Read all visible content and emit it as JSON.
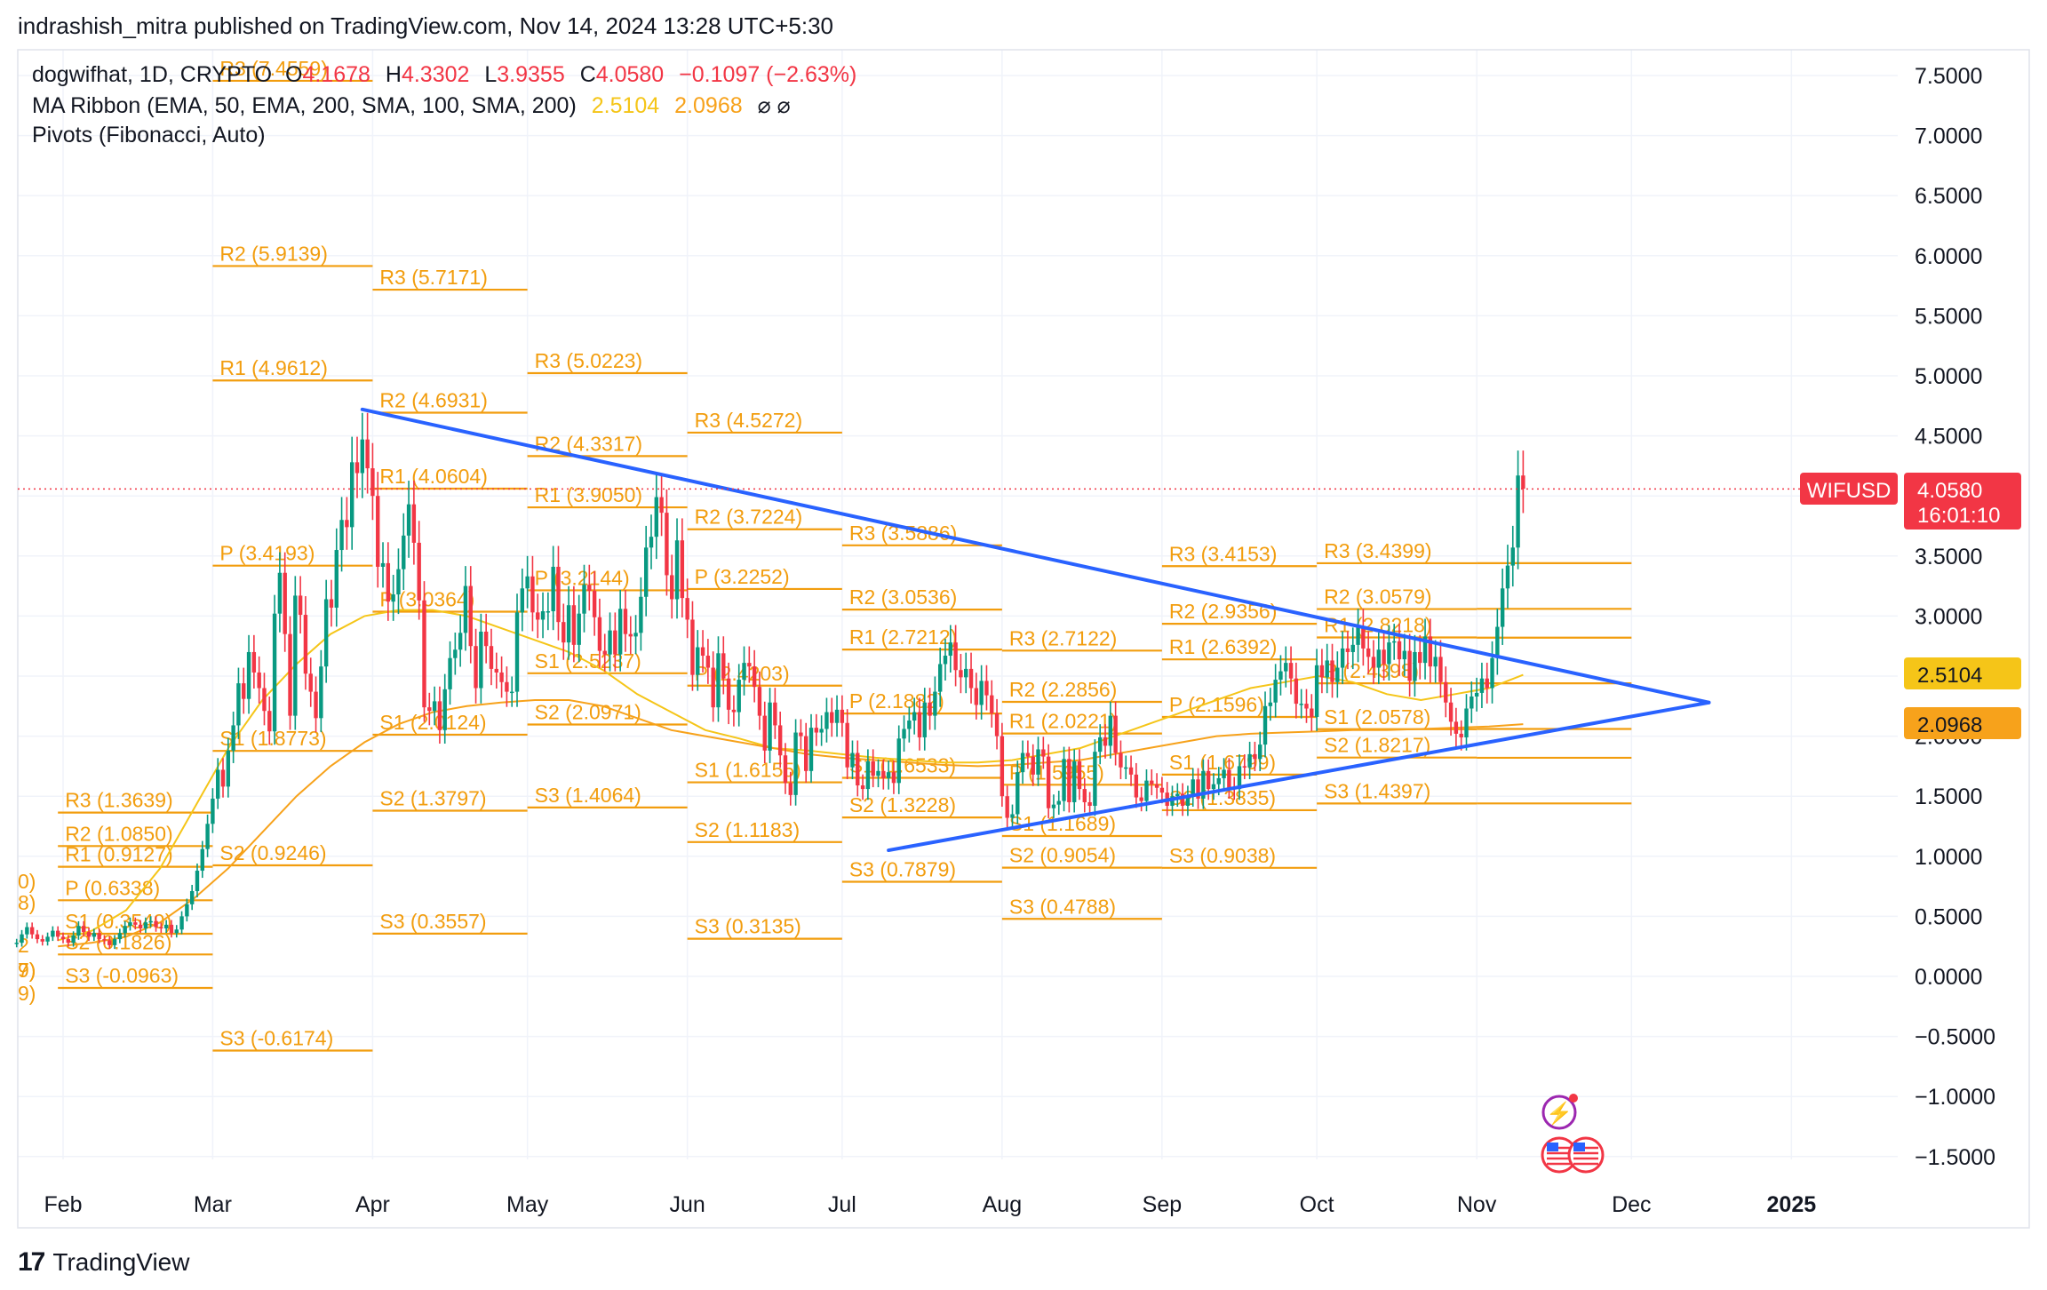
{
  "header": {
    "published": "indrashish_mitra published on TradingView.com, Nov 14, 2024 13:28 UTC+5:30"
  },
  "legend": {
    "symbol": "dogwifhat, 1D, CRYPTO",
    "o_label": "O",
    "o": "4.1678",
    "h_label": "H",
    "h": "4.3302",
    "l_label": "L",
    "l": "3.9355",
    "c_label": "C",
    "c": "4.0580",
    "change": "−0.1097 (−2.63%)",
    "ma_ribbon": "MA Ribbon (EMA, 50, EMA, 200, SMA, 100, SMA, 200)",
    "ma_v1": "2.5104",
    "ma_v2": "2.0968",
    "ma_na": "⌀ ⌀",
    "pivots": "Pivots (Fibonacci, Auto)"
  },
  "footer": {
    "brand": "TradingView"
  },
  "colors": {
    "up": "#089981",
    "down": "#f23645",
    "pivot": "#f29d0e",
    "trend": "#2962ff",
    "ma1": "#f5c518",
    "ma2": "#f7a21b",
    "grid": "#f0f3fa"
  },
  "icons": [
    "lightning-icon",
    "us-flag-icon",
    "us-flag-icon"
  ],
  "chart_data": {
    "type": "candlestick",
    "symbol": "WIFUSD",
    "last_price": "4.0580",
    "countdown": "16:01:10",
    "ma_labels": [
      "2.5104",
      "2.0968"
    ],
    "ylim": [
      -1.7,
      7.7
    ],
    "y_ticks": [
      "7.5000",
      "7.0000",
      "6.5000",
      "6.0000",
      "5.5000",
      "5.0000",
      "4.5000",
      "4.0000",
      "3.5000",
      "3.0000",
      "2.5000",
      "2.0000",
      "1.5000",
      "1.0000",
      "0.5000",
      "0.0000",
      "−0.5000",
      "−1.0000",
      "−1.5000"
    ],
    "y_tick_values": [
      7.5,
      7.0,
      6.5,
      6.0,
      5.5,
      5.0,
      4.5,
      4.0,
      3.5,
      3.0,
      2.5,
      2.0,
      1.5,
      1.0,
      0.5,
      0.0,
      -0.5,
      -1.0,
      -1.5
    ],
    "x_ticks": [
      "Feb",
      "Mar",
      "Apr",
      "May",
      "Jun",
      "Jul",
      "Aug",
      "Sep",
      "Oct",
      "Nov",
      "Dec",
      "2025"
    ],
    "x_tick_days": [
      31,
      60,
      91,
      121,
      152,
      182,
      213,
      244,
      274,
      305,
      335,
      366
    ],
    "start_day": 22,
    "closes": [
      0.28,
      0.35,
      0.41,
      0.35,
      0.31,
      0.29,
      0.33,
      0.38,
      0.33,
      0.31,
      0.28,
      0.34,
      0.42,
      0.37,
      0.33,
      0.36,
      0.31,
      0.3,
      0.26,
      0.31,
      0.36,
      0.42,
      0.45,
      0.43,
      0.4,
      0.45,
      0.46,
      0.41,
      0.4,
      0.43,
      0.36,
      0.39,
      0.5,
      0.6,
      0.71,
      0.88,
      1.06,
      1.27,
      1.48,
      1.72,
      1.58,
      1.88,
      2.09,
      2.44,
      2.31,
      2.7,
      2.53,
      2.4,
      2.21,
      2.04,
      3.02,
      3.36,
      2.85,
      2.17,
      3.17,
      3.01,
      2.52,
      2.37,
      2.15,
      2.58,
      3.14,
      3.07,
      3.55,
      3.8,
      3.74,
      4.28,
      4.19,
      4.47,
      4.23,
      4.0,
      3.41,
      3.44,
      3.12,
      3.18,
      3.39,
      3.67,
      3.93,
      3.61,
      3.13,
      2.24,
      2.21,
      2.29,
      2.05,
      2.39,
      2.65,
      2.72,
      2.86,
      3.25,
      2.75,
      2.4,
      2.87,
      2.75,
      2.56,
      2.53,
      2.45,
      2.37,
      2.37,
      3.03,
      3.23,
      3.33,
      3.03,
      2.97,
      3.04,
      3.04,
      3.41,
      2.95,
      2.78,
      3.09,
      2.76,
      3.02,
      3.26,
      3.21,
      2.99,
      2.71,
      2.68,
      2.88,
      2.68,
      3.06,
      2.85,
      2.83,
      2.86,
      3.16,
      3.57,
      3.66,
      3.99,
      3.86,
      3.34,
      3.14,
      3.63,
      3.15,
      2.97,
      2.51,
      2.74,
      2.67,
      2.57,
      2.24,
      2.69,
      2.48,
      2.22,
      2.2,
      2.47,
      2.61,
      2.58,
      2.41,
      2.17,
      1.88,
      2.28,
      2.09,
      1.84,
      1.61,
      1.51,
      2.03,
      2.0,
      1.71,
      2.07,
      2.03,
      2.06,
      2.2,
      2.11,
      2.22,
      2.11,
      1.74,
      1.86,
      1.59,
      1.56,
      1.79,
      1.67,
      1.71,
      1.65,
      1.7,
      1.61,
      1.98,
      2.06,
      2.13,
      2.2,
      1.99,
      2.28,
      2.17,
      2.37,
      2.6,
      2.67,
      2.78,
      2.55,
      2.49,
      2.56,
      2.4,
      2.26,
      2.46,
      2.34,
      2.19,
      2.0,
      1.5,
      1.32,
      1.35,
      1.7,
      1.86,
      1.83,
      1.68,
      1.89,
      1.83,
      1.4,
      1.43,
      1.46,
      1.81,
      1.45,
      1.79,
      1.56,
      1.45,
      1.42,
      1.87,
      1.99,
      1.92,
      2.17,
      1.86,
      1.74,
      1.74,
      1.68,
      1.49,
      1.46,
      1.63,
      1.6,
      1.57,
      1.53,
      1.42,
      1.5,
      1.52,
      1.42,
      1.5,
      1.64,
      1.48,
      1.71,
      1.56,
      1.6,
      1.65,
      1.72,
      1.57,
      1.56,
      1.75,
      1.74,
      1.85,
      1.81,
      1.93,
      2.25,
      2.28,
      2.47,
      2.54,
      2.61,
      2.48,
      2.27,
      2.27,
      2.23,
      2.16,
      2.59,
      2.49,
      2.63,
      2.45,
      2.57,
      2.73,
      2.7,
      2.76,
      2.91,
      2.73,
      2.66,
      2.57,
      2.72,
      2.6,
      2.78,
      2.79,
      2.64,
      2.71,
      2.46,
      2.7,
      2.61,
      2.83,
      2.58,
      2.66,
      2.45,
      2.28,
      2.12,
      2.02,
      1.99,
      2.23,
      2.33,
      2.36,
      2.48,
      2.4,
      2.65,
      2.91,
      3.23,
      3.42,
      3.57,
      4.17,
      4.06
    ],
    "ma_ribbon_series": [
      {
        "values": [
          0.3,
          0.38,
          0.55,
          0.9,
          1.4,
          1.9,
          2.3,
          2.6,
          2.85,
          3.0,
          3.05,
          3.05,
          3.0,
          2.9,
          2.8,
          2.7,
          2.55,
          2.35,
          2.2,
          2.05,
          1.98,
          1.9,
          1.88,
          1.85,
          1.82,
          1.8,
          1.78,
          1.78,
          1.8,
          1.85,
          1.9,
          2.0,
          2.1,
          2.2,
          2.3,
          2.4,
          2.45,
          2.5,
          2.45,
          2.35,
          2.3,
          2.35,
          2.4,
          2.51
        ]
      },
      {
        "values": [
          0.25,
          0.28,
          0.33,
          0.45,
          0.65,
          0.9,
          1.2,
          1.5,
          1.75,
          1.95,
          2.1,
          2.2,
          2.25,
          2.28,
          2.3,
          2.3,
          2.25,
          2.15,
          2.05,
          2.0,
          1.95,
          1.9,
          1.85,
          1.82,
          1.8,
          1.78,
          1.76,
          1.75,
          1.76,
          1.78,
          1.8,
          1.85,
          1.9,
          1.95,
          2.0,
          2.02,
          2.03,
          2.04,
          2.05,
          2.05,
          2.06,
          2.07,
          2.08,
          2.1
        ]
      }
    ],
    "trendlines": [
      {
        "from_day": 89,
        "from": 4.72,
        "to_day": 350,
        "to": 2.28
      },
      {
        "from_day": 191,
        "from": 1.05,
        "to_day": 350,
        "to": 2.28
      }
    ],
    "pivot_periods": [
      {
        "start_day": 30,
        "end_day": 60,
        "levels": [
          [
            "R3 (1.3639)",
            1.3639
          ],
          [
            "R2 (1.0850)",
            1.085
          ],
          [
            "R1 (0.9127)",
            0.9127
          ],
          [
            "P (0.6338)",
            0.6338
          ],
          [
            "S1 (0.3549)",
            0.3549
          ],
          [
            "S2 (0.1826)",
            0.1826
          ],
          [
            "S3 (-0.0963)",
            -0.0963
          ]
        ]
      },
      {
        "start_day": 60,
        "end_day": 91,
        "levels": [
          [
            "R3 (7.4559)",
            7.4559
          ],
          [
            "R2 (5.9139)",
            5.9139
          ],
          [
            "R1 (4.9612)",
            4.9612
          ],
          [
            "P (3.4193)",
            3.4193
          ],
          [
            "S1 (1.8773)",
            1.8773
          ],
          [
            "S2 (0.9246)",
            0.9246
          ],
          [
            "S3 (-0.6174)",
            -0.6174
          ]
        ]
      },
      {
        "start_day": 91,
        "end_day": 121,
        "levels": [
          [
            "R3 (5.7171)",
            5.7171
          ],
          [
            "R2 (4.6931)",
            4.6931
          ],
          [
            "R1 (4.0604)",
            4.0604
          ],
          [
            "P (3.0364)",
            3.0364
          ],
          [
            "S1 (2.0124)",
            2.0124
          ],
          [
            "S2 (1.3797)",
            1.3797
          ],
          [
            "S3 (0.3557)",
            0.3557
          ]
        ]
      },
      {
        "start_day": 121,
        "end_day": 152,
        "levels": [
          [
            "R3 (5.0223)",
            5.0223
          ],
          [
            "R2 (4.3317)",
            4.3317
          ],
          [
            "R1 (3.9050)",
            3.905
          ],
          [
            "P (3.2144)",
            3.2144
          ],
          [
            "S1 (2.5237)",
            2.5237
          ],
          [
            "S2 (2.0971)",
            2.0971
          ],
          [
            "S3 (1.4064)",
            1.4064
          ]
        ]
      },
      {
        "start_day": 152,
        "end_day": 182,
        "levels": [
          [
            "R3 (4.5272)",
            4.5272
          ],
          [
            "R2 (3.7224)",
            3.7224
          ],
          [
            "P (3.2252)",
            3.2252
          ],
          [
            "P (2.4203)",
            2.4203
          ],
          [
            "S1 (1.6155)",
            1.6155
          ],
          [
            "S2 (1.1183)",
            1.1183
          ],
          [
            "S3 (0.3135)",
            0.3135
          ]
        ]
      },
      {
        "start_day": 182,
        "end_day": 213,
        "levels": [
          [
            "R3 (3.5886)",
            3.5886
          ],
          [
            "R2 (3.0536)",
            3.0536
          ],
          [
            "R1 (2.7212)",
            2.7212
          ],
          [
            "P (2.1882)",
            2.1882
          ],
          [
            "S1 (1.6533)",
            1.6533
          ],
          [
            "S2 (1.3228)",
            1.3228
          ],
          [
            "S3 (0.7879)",
            0.7879
          ]
        ]
      },
      {
        "start_day": 213,
        "end_day": 244,
        "levels": [
          [
            "R3 (2.7122)",
            2.7122
          ],
          [
            "R2 (2.2856)",
            2.2856
          ],
          [
            "R1 (2.0221)",
            2.0221
          ],
          [
            "P (1.5955)",
            1.5955
          ],
          [
            "S1 (1.1689)",
            1.1689
          ],
          [
            "S2 (0.9054)",
            0.9054
          ],
          [
            "S3 (0.4788)",
            0.4788
          ]
        ]
      },
      {
        "start_day": 244,
        "end_day": 274,
        "levels": [
          [
            "R3 (3.4153)",
            3.4153
          ],
          [
            "R2 (2.9356)",
            2.9356
          ],
          [
            "R1 (2.6392)",
            2.6392
          ],
          [
            "P (2.1596)",
            2.1596
          ],
          [
            "S1 (1.6799)",
            1.6799
          ],
          [
            "S2 (1.3835)",
            1.3835
          ],
          [
            "S3 (0.9038)",
            0.9038
          ]
        ]
      },
      {
        "start_day": 274,
        "end_day": 305,
        "levels": [
          [
            "R3 (3.4399)",
            3.4399
          ],
          [
            "R2 (3.0579)",
            3.0579
          ],
          [
            "R1 (2.8218)",
            2.8218
          ],
          [
            "P (2.4398)",
            2.4398
          ],
          [
            "S1 (2.0578)",
            2.0578
          ],
          [
            "S2 (1.8217)",
            1.8217
          ],
          [
            "S3 (1.4397)",
            1.4397
          ]
        ]
      }
    ],
    "current_pivot": {
      "start_day": 305,
      "end_day": 335,
      "levels": [
        3.44,
        3.06,
        2.82,
        2.44,
        2.06,
        1.82,
        1.44
      ]
    },
    "feb_edge_labels": [
      "0)",
      "8)",
      "2",
      "9)",
      "7)",
      "9)"
    ]
  }
}
